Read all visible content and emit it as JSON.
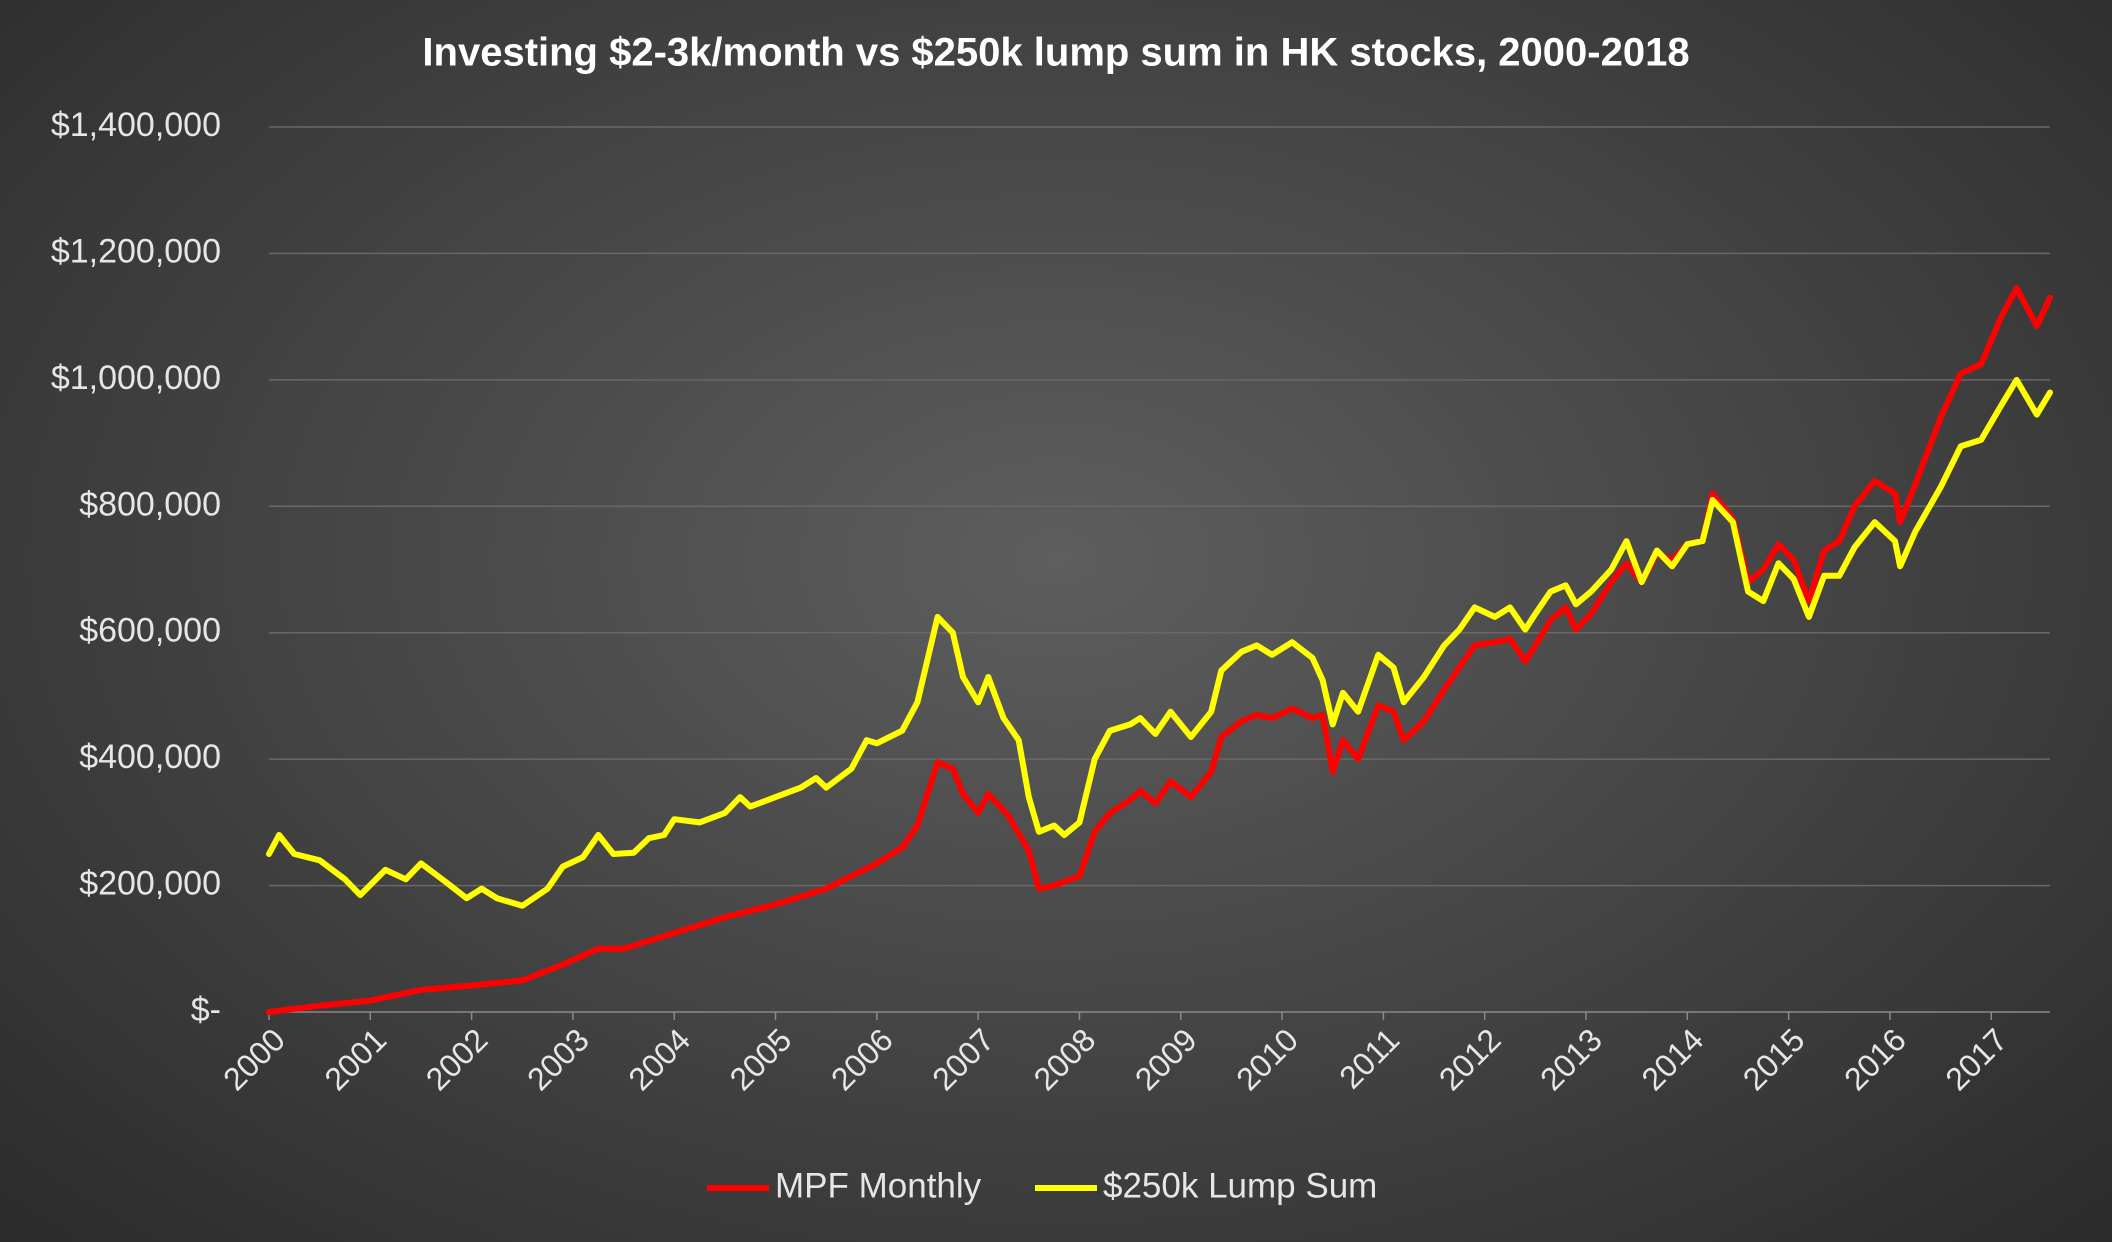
{
  "chart_data": {
    "type": "line",
    "title": "Investing $2-3k/month vs $250k lump sum in HK stocks, 2000-2018",
    "xlim": [
      2000,
      2017.58
    ],
    "xticks": [
      2000,
      2001,
      2002,
      2003,
      2004,
      2005,
      2006,
      2007,
      2008,
      2009,
      2010,
      2011,
      2012,
      2013,
      2014,
      2015,
      2016,
      2017
    ],
    "ylim": [
      0,
      1400000
    ],
    "yticks": [
      {
        "value": 0,
        "label": "$-"
      },
      {
        "value": 200000,
        "label": "$200,000"
      },
      {
        "value": 400000,
        "label": "$400,000"
      },
      {
        "value": 600000,
        "label": "$600,000"
      },
      {
        "value": 800000,
        "label": "$800,000"
      },
      {
        "value": 1000000,
        "label": "$1,000,000"
      },
      {
        "value": 1200000,
        "label": "$1,200,000"
      },
      {
        "value": 1400000,
        "label": "$1,400,000"
      }
    ],
    "grid": true,
    "legend": "bottom",
    "series": [
      {
        "name": "MPF Monthly",
        "color": "#ff0000",
        "x": [
          2000.0,
          2000.5,
          2001.0,
          2001.5,
          2002.0,
          2002.5,
          2002.9,
          2003.25,
          2003.5,
          2004.0,
          2004.5,
          2005.0,
          2005.5,
          2006.0,
          2006.25,
          2006.4,
          2006.6,
          2006.75,
          2006.85,
          2007.0,
          2007.1,
          2007.3,
          2007.5,
          2007.6,
          2007.75,
          2008.0,
          2008.15,
          2008.3,
          2008.5,
          2008.6,
          2008.75,
          2008.9,
          2009.1,
          2009.3,
          2009.4,
          2009.6,
          2009.75,
          2009.9,
          2010.1,
          2010.3,
          2010.4,
          2010.5,
          2010.6,
          2010.75,
          2010.95,
          2011.1,
          2011.2,
          2011.4,
          2011.6,
          2011.75,
          2011.9,
          2012.1,
          2012.25,
          2012.4,
          2012.5,
          2012.65,
          2012.8,
          2012.9,
          2013.05,
          2013.25,
          2013.4,
          2013.55,
          2013.7,
          2013.85,
          2014.0,
          2014.15,
          2014.25,
          2014.45,
          2014.6,
          2014.75,
          2014.9,
          2015.05,
          2015.2,
          2015.35,
          2015.5,
          2015.65,
          2015.85,
          2016.05,
          2016.1,
          2016.25,
          2016.5,
          2016.7,
          2016.9,
          2017.1,
          2017.25,
          2017.45,
          2017.58
        ],
        "values": [
          0,
          10000,
          18000,
          35000,
          42000,
          50000,
          75000,
          100000,
          100000,
          125000,
          150000,
          170000,
          195000,
          235000,
          260000,
          295000,
          395000,
          385000,
          345000,
          315000,
          345000,
          310000,
          255000,
          195000,
          200000,
          215000,
          285000,
          315000,
          335000,
          350000,
          330000,
          365000,
          340000,
          380000,
          435000,
          460000,
          470000,
          465000,
          480000,
          465000,
          470000,
          380000,
          430000,
          400000,
          485000,
          475000,
          430000,
          460000,
          510000,
          545000,
          580000,
          585000,
          590000,
          555000,
          580000,
          620000,
          640000,
          605000,
          630000,
          680000,
          710000,
          680000,
          725000,
          715000,
          740000,
          745000,
          820000,
          780000,
          680000,
          700000,
          740000,
          715000,
          650000,
          730000,
          745000,
          800000,
          840000,
          820000,
          775000,
          835000,
          940000,
          1010000,
          1025000,
          1100000,
          1145000,
          1085000,
          1130000
        ]
      },
      {
        "name": "$250k Lump Sum",
        "color": "#ffff00",
        "x": [
          2000.0,
          2000.1,
          2000.25,
          2000.5,
          2000.75,
          2000.9,
          2001.15,
          2001.35,
          2001.5,
          2001.75,
          2001.95,
          2002.1,
          2002.25,
          2002.5,
          2002.75,
          2002.9,
          2003.1,
          2003.25,
          2003.4,
          2003.6,
          2003.75,
          2003.9,
          2004.0,
          2004.25,
          2004.5,
          2004.65,
          2004.75,
          2005.0,
          2005.25,
          2005.4,
          2005.5,
          2005.75,
          2005.9,
          2006.0,
          2006.25,
          2006.4,
          2006.6,
          2006.75,
          2006.85,
          2007.0,
          2007.1,
          2007.25,
          2007.4,
          2007.5,
          2007.6,
          2007.75,
          2007.85,
          2008.0,
          2008.15,
          2008.3,
          2008.5,
          2008.6,
          2008.75,
          2008.9,
          2009.1,
          2009.3,
          2009.4,
          2009.6,
          2009.75,
          2009.9,
          2010.1,
          2010.3,
          2010.4,
          2010.5,
          2010.6,
          2010.75,
          2010.95,
          2011.1,
          2011.2,
          2011.4,
          2011.6,
          2011.75,
          2011.9,
          2012.1,
          2012.25,
          2012.4,
          2012.5,
          2012.65,
          2012.8,
          2012.9,
          2013.05,
          2013.25,
          2013.4,
          2013.55,
          2013.7,
          2013.85,
          2014.0,
          2014.15,
          2014.25,
          2014.45,
          2014.6,
          2014.75,
          2014.9,
          2015.05,
          2015.2,
          2015.35,
          2015.5,
          2015.65,
          2015.85,
          2016.05,
          2016.1,
          2016.25,
          2016.5,
          2016.7,
          2016.9,
          2017.1,
          2017.25,
          2017.45,
          2017.58
        ],
        "values": [
          250000,
          280000,
          250000,
          240000,
          210000,
          185000,
          225000,
          210000,
          235000,
          205000,
          180000,
          195000,
          180000,
          168000,
          195000,
          230000,
          245000,
          280000,
          250000,
          252000,
          275000,
          280000,
          305000,
          300000,
          315000,
          340000,
          325000,
          340000,
          355000,
          370000,
          355000,
          385000,
          430000,
          425000,
          445000,
          490000,
          625000,
          600000,
          530000,
          490000,
          530000,
          465000,
          430000,
          340000,
          285000,
          295000,
          280000,
          300000,
          400000,
          445000,
          455000,
          465000,
          440000,
          475000,
          435000,
          475000,
          540000,
          570000,
          580000,
          565000,
          585000,
          560000,
          525000,
          455000,
          505000,
          475000,
          565000,
          545000,
          490000,
          530000,
          580000,
          605000,
          640000,
          625000,
          640000,
          605000,
          630000,
          665000,
          675000,
          645000,
          665000,
          700000,
          745000,
          680000,
          730000,
          705000,
          740000,
          745000,
          810000,
          775000,
          665000,
          650000,
          710000,
          685000,
          625000,
          690000,
          690000,
          735000,
          775000,
          745000,
          705000,
          760000,
          830000,
          895000,
          905000,
          960000,
          1000000,
          945000,
          980000
        ]
      }
    ]
  }
}
